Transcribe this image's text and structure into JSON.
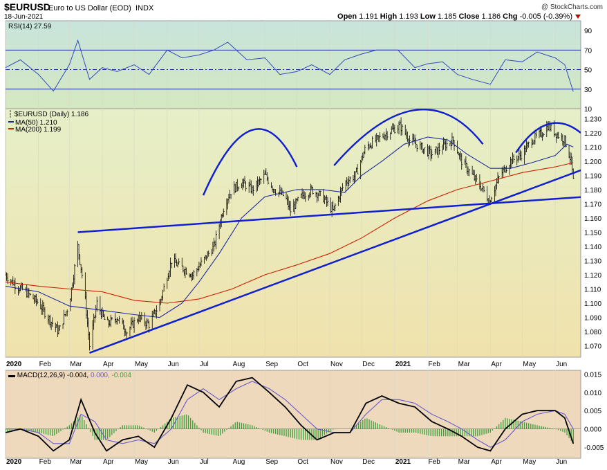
{
  "header": {
    "symbol": "$EURUSD",
    "description": "Euro to US Dollar (EOD)",
    "exchange": "INDX",
    "date": "18-Jun-2021",
    "watermark": "@ StockCharts.com",
    "open_label": "Open",
    "open": "1.191",
    "high_label": "High",
    "high": "1.193",
    "low_label": "Low",
    "low": "1.185",
    "close_label": "Close",
    "close": "1.186",
    "chg_label": "Chg",
    "chg": "-0.005 (-0.39%)"
  },
  "colors": {
    "rsi_bg_top": "#c8e4dc",
    "rsi_bg_bottom": "#d4e8c0",
    "price_bg_top": "#e6efc8",
    "price_bg_bottom": "#f0e2ac",
    "macd_bg": "#efd9bc",
    "ma50": "#1a2aa0",
    "ma200": "#cc2200",
    "trend": "#1020d0",
    "price": "#000000",
    "rsi_line": "#3348b8",
    "macd_line": "#000000",
    "signal_line": "#6a5acd",
    "hist": "#3aa03a",
    "chg_down": "#cc0000"
  },
  "chart_data": [
    {
      "type": "line",
      "panel": "RSI",
      "legend": "RSI(14) 27.59",
      "ylim": [
        10,
        100
      ],
      "y_ticks": [
        10,
        30,
        50,
        70,
        90
      ],
      "reference_lines": [
        30,
        50,
        70
      ],
      "x_dates": [
        "2020-01-01",
        "2020-01-15",
        "2020-02-01",
        "2020-02-15",
        "2020-03-01",
        "2020-03-09",
        "2020-03-20",
        "2020-04-01",
        "2020-04-15",
        "2020-05-01",
        "2020-05-15",
        "2020-06-01",
        "2020-06-15",
        "2020-07-01",
        "2020-07-15",
        "2020-07-28",
        "2020-08-15",
        "2020-09-01",
        "2020-09-15",
        "2020-10-01",
        "2020-10-15",
        "2020-11-01",
        "2020-11-15",
        "2020-12-01",
        "2020-12-15",
        "2021-01-04",
        "2021-01-20",
        "2021-02-01",
        "2021-02-15",
        "2021-03-01",
        "2021-03-15",
        "2021-04-01",
        "2021-04-15",
        "2021-05-01",
        "2021-05-15",
        "2021-06-01",
        "2021-06-10",
        "2021-06-18"
      ],
      "values": [
        52,
        60,
        45,
        28,
        55,
        80,
        40,
        52,
        48,
        55,
        45,
        70,
        62,
        65,
        70,
        78,
        60,
        62,
        45,
        48,
        55,
        45,
        60,
        66,
        70,
        70,
        52,
        56,
        58,
        45,
        40,
        35,
        60,
        58,
        68,
        62,
        55,
        27.59
      ]
    },
    {
      "type": "line",
      "panel": "Price",
      "legend": {
        "price": "$EURUSD (Daily) 1.186",
        "ma50": "MA(50) 1.210",
        "ma200": "MA(200) 1.199"
      },
      "ylim": [
        1.062,
        1.237
      ],
      "y_ticks": [
        1.07,
        1.08,
        1.09,
        1.1,
        1.11,
        1.12,
        1.13,
        1.14,
        1.15,
        1.16,
        1.17,
        1.18,
        1.19,
        1.2,
        1.21,
        1.22,
        1.23
      ],
      "x_ticks": [
        "2020",
        "Feb",
        "Mar",
        "Apr",
        "May",
        "Jun",
        "Jul",
        "Aug",
        "Sep",
        "Oct",
        "Nov",
        "Dec",
        "2021",
        "Feb",
        "Mar",
        "Apr",
        "May",
        "Jun"
      ],
      "x_tick_dates": [
        "2020-01-01",
        "2020-02-01",
        "2020-03-01",
        "2020-04-01",
        "2020-05-01",
        "2020-06-01",
        "2020-07-01",
        "2020-08-01",
        "2020-09-01",
        "2020-10-01",
        "2020-11-01",
        "2020-12-01",
        "2021-01-01",
        "2021-02-01",
        "2021-03-01",
        "2021-04-01",
        "2021-05-01",
        "2021-06-01"
      ],
      "series": [
        {
          "name": "$EURUSD (Daily)",
          "dates": [
            "2020-01-01",
            "2020-01-10",
            "2020-01-20",
            "2020-02-01",
            "2020-02-10",
            "2020-02-20",
            "2020-03-01",
            "2020-03-09",
            "2020-03-15",
            "2020-03-20",
            "2020-03-27",
            "2020-04-05",
            "2020-04-15",
            "2020-04-24",
            "2020-05-05",
            "2020-05-15",
            "2020-05-25",
            "2020-06-05",
            "2020-06-15",
            "2020-06-25",
            "2020-07-05",
            "2020-07-15",
            "2020-07-25",
            "2020-08-01",
            "2020-08-10",
            "2020-08-20",
            "2020-09-01",
            "2020-09-10",
            "2020-09-20",
            "2020-09-25",
            "2020-10-05",
            "2020-10-15",
            "2020-10-25",
            "2020-11-04",
            "2020-11-15",
            "2020-11-25",
            "2020-12-05",
            "2020-12-15",
            "2020-12-25",
            "2021-01-06",
            "2021-01-15",
            "2021-01-25",
            "2021-02-05",
            "2021-02-15",
            "2021-02-25",
            "2021-03-05",
            "2021-03-15",
            "2021-03-25",
            "2021-03-31",
            "2021-04-10",
            "2021-04-20",
            "2021-05-01",
            "2021-05-10",
            "2021-05-20",
            "2021-05-25",
            "2021-06-01",
            "2021-06-10",
            "2021-06-16",
            "2021-06-18"
          ],
          "values": [
            1.12,
            1.113,
            1.108,
            1.1,
            1.09,
            1.08,
            1.1,
            1.14,
            1.11,
            1.07,
            1.1,
            1.085,
            1.09,
            1.08,
            1.09,
            1.085,
            1.1,
            1.13,
            1.125,
            1.12,
            1.13,
            1.14,
            1.17,
            1.18,
            1.185,
            1.18,
            1.19,
            1.18,
            1.175,
            1.165,
            1.175,
            1.18,
            1.175,
            1.165,
            1.185,
            1.19,
            1.21,
            1.215,
            1.22,
            1.225,
            1.215,
            1.21,
            1.205,
            1.21,
            1.215,
            1.2,
            1.19,
            1.18,
            1.172,
            1.19,
            1.2,
            1.205,
            1.215,
            1.22,
            1.225,
            1.22,
            1.215,
            1.2,
            1.186
          ]
        },
        {
          "name": "MA(50)",
          "dates": [
            "2020-01-01",
            "2020-02-01",
            "2020-03-01",
            "2020-04-01",
            "2020-05-01",
            "2020-05-25",
            "2020-06-15",
            "2020-07-01",
            "2020-07-20",
            "2020-08-10",
            "2020-09-01",
            "2020-10-01",
            "2020-10-25",
            "2020-11-15",
            "2020-12-01",
            "2020-12-20",
            "2021-01-10",
            "2021-02-01",
            "2021-02-20",
            "2021-03-10",
            "2021-04-01",
            "2021-04-20",
            "2021-05-10",
            "2021-06-01",
            "2021-06-12",
            "2021-06-18"
          ],
          "values": [
            1.112,
            1.108,
            1.098,
            1.095,
            1.092,
            1.09,
            1.1,
            1.115,
            1.135,
            1.16,
            1.175,
            1.18,
            1.18,
            1.178,
            1.19,
            1.2,
            1.212,
            1.217,
            1.215,
            1.205,
            1.195,
            1.195,
            1.199,
            1.204,
            1.212,
            1.21
          ]
        },
        {
          "name": "MA(200)",
          "dates": [
            "2020-01-01",
            "2020-02-01",
            "2020-03-01",
            "2020-04-01",
            "2020-05-01",
            "2020-06-01",
            "2020-07-01",
            "2020-08-01",
            "2020-09-01",
            "2020-10-01",
            "2020-11-01",
            "2020-12-01",
            "2021-01-01",
            "2021-02-01",
            "2021-03-01",
            "2021-04-01",
            "2021-05-01",
            "2021-06-01",
            "2021-06-18"
          ],
          "values": [
            1.115,
            1.112,
            1.11,
            1.108,
            1.102,
            1.1,
            1.103,
            1.11,
            1.12,
            1.127,
            1.135,
            1.146,
            1.16,
            1.172,
            1.18,
            1.186,
            1.192,
            1.196,
            1.199
          ]
        }
      ],
      "trendlines": [
        {
          "name": "upper",
          "from": [
            "2020-03-09",
            1.15
          ],
          "to": [
            "2021-06-30",
            1.175
          ]
        },
        {
          "name": "lower",
          "from": [
            "2020-03-20",
            1.065
          ],
          "to": [
            "2021-06-30",
            1.195
          ]
        }
      ],
      "arcs": [
        {
          "name": "arc-1",
          "start": [
            "2020-07-05",
            1.176
          ],
          "peak": [
            "2020-08-20",
            1.222
          ],
          "end": [
            "2020-10-01",
            1.196
          ]
        },
        {
          "name": "arc-2",
          "start": [
            "2020-11-05",
            1.197
          ],
          "peak": [
            "2021-01-20",
            1.236
          ],
          "end": [
            "2021-03-25",
            1.212
          ]
        },
        {
          "name": "arc-3",
          "start": [
            "2021-04-25",
            1.206
          ],
          "peak": [
            "2021-05-25",
            1.226
          ],
          "end": [
            "2021-06-25",
            1.22
          ]
        }
      ]
    },
    {
      "type": "line",
      "panel": "MACD",
      "legend": {
        "label": "MACD(12,26,9)",
        "macd": "-0.004",
        "signal": "0.000",
        "hist": "-0.004"
      },
      "ylim": [
        -0.008,
        0.016
      ],
      "y_ticks": [
        -0.005,
        0.0,
        0.005,
        0.01,
        0.015
      ],
      "x_ticks": [
        "2020",
        "Feb",
        "Mar",
        "Apr",
        "May",
        "Jun",
        "Jul",
        "Aug",
        "Sep",
        "Oct",
        "Nov",
        "Dec",
        "2021",
        "Feb",
        "Mar",
        "Apr",
        "May",
        "Jun"
      ],
      "x_dates": [
        "2020-01-01",
        "2020-01-15",
        "2020-02-01",
        "2020-02-15",
        "2020-03-01",
        "2020-03-12",
        "2020-03-25",
        "2020-04-05",
        "2020-04-20",
        "2020-05-05",
        "2020-05-20",
        "2020-06-05",
        "2020-06-20",
        "2020-07-05",
        "2020-07-20",
        "2020-08-05",
        "2020-08-20",
        "2020-09-05",
        "2020-09-20",
        "2020-10-05",
        "2020-10-20",
        "2020-11-05",
        "2020-11-20",
        "2020-12-05",
        "2020-12-20",
        "2021-01-05",
        "2021-01-20",
        "2021-02-05",
        "2021-02-20",
        "2021-03-05",
        "2021-03-20",
        "2021-04-01",
        "2021-04-15",
        "2021-05-01",
        "2021-05-15",
        "2021-06-01",
        "2021-06-10",
        "2021-06-18"
      ],
      "series": [
        {
          "name": "MACD",
          "values": [
            -0.001,
            0.0,
            -0.002,
            -0.006,
            -0.003,
            0.008,
            -0.001,
            -0.006,
            -0.003,
            -0.002,
            -0.005,
            0.003,
            0.012,
            0.01,
            0.006,
            0.013,
            0.014,
            0.01,
            0.006,
            0.001,
            -0.003,
            -0.001,
            -0.001,
            0.007,
            0.009,
            0.007,
            0.006,
            0.002,
            0.0,
            -0.002,
            -0.005,
            -0.006,
            0.0,
            0.004,
            0.005,
            0.005,
            0.003,
            -0.004
          ]
        },
        {
          "name": "Signal",
          "values": [
            0.0,
            0.0,
            -0.001,
            -0.004,
            -0.004,
            0.004,
            0.002,
            -0.003,
            -0.004,
            -0.003,
            -0.004,
            0.0,
            0.008,
            0.011,
            0.008,
            0.011,
            0.013,
            0.011,
            0.008,
            0.004,
            0.0,
            -0.001,
            -0.001,
            0.004,
            0.008,
            0.008,
            0.007,
            0.004,
            0.002,
            0.0,
            -0.003,
            -0.005,
            -0.003,
            0.002,
            0.004,
            0.005,
            0.004,
            0.0
          ]
        },
        {
          "name": "Histogram",
          "values": [
            -0.001,
            0.0,
            -0.001,
            -0.002,
            0.001,
            0.004,
            -0.003,
            -0.003,
            0.001,
            0.001,
            -0.001,
            0.003,
            0.004,
            -0.001,
            -0.002,
            0.002,
            0.001,
            -0.001,
            -0.002,
            -0.003,
            -0.003,
            0.0,
            0.0,
            0.003,
            0.001,
            -0.001,
            -0.001,
            -0.002,
            -0.002,
            -0.002,
            -0.002,
            -0.001,
            0.003,
            0.002,
            0.001,
            0.0,
            -0.001,
            -0.004
          ]
        }
      ]
    }
  ]
}
